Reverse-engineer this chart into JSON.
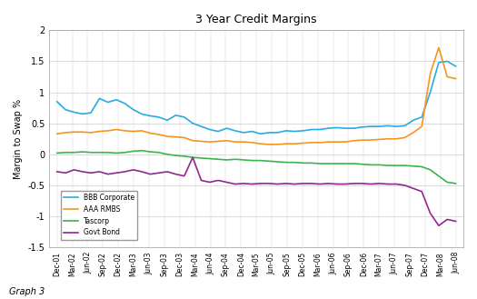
{
  "title": "3 Year Credit Margins",
  "ylabel": "Margin to Swap %",
  "graph_label": "Graph 3",
  "ylim": [
    -1.5,
    2.0
  ],
  "yticks": [
    -1.5,
    -1.0,
    -0.5,
    0.0,
    0.5,
    1.0,
    1.5,
    2.0
  ],
  "ytick_labels": [
    "-1.5",
    "-1",
    "-0.5",
    "0",
    "0.5",
    "1",
    "1.5",
    "2"
  ],
  "x_labels": [
    "Dec-01",
    "Mar-02",
    "Jun-02",
    "Sep-02",
    "Dec-02",
    "Mar-03",
    "Jun-03",
    "Sep-03",
    "Dec-03",
    "Mar-04",
    "Jun-04",
    "Sep-04",
    "Dec-04",
    "Mar-05",
    "Jun-05",
    "Sep-05",
    "Dec-05",
    "Mar-06",
    "Jun-06",
    "Sep-06",
    "Dec-06",
    "Mar-07",
    "Jun-07",
    "Sep-07",
    "Dec-07",
    "Mar-08",
    "Jun-08"
  ],
  "colors": {
    "BBB Corporate": "#29ABE2",
    "AAA RMBS": "#F7941D",
    "Tascorp": "#39B54A",
    "Govt Bond": "#92278F"
  },
  "legend_labels": [
    "BBB Corporate",
    "AAA RMBS",
    "Tascorp",
    "Govt Bond"
  ],
  "bbb_corporate": [
    0.85,
    0.72,
    0.68,
    0.65,
    0.67,
    0.9,
    0.84,
    0.88,
    0.82,
    0.72,
    0.65,
    0.62,
    0.6,
    0.55,
    0.63,
    0.6,
    0.5,
    0.45,
    0.4,
    0.37,
    0.42,
    0.38,
    0.35,
    0.37,
    0.33,
    0.35,
    0.35,
    0.38,
    0.37,
    0.38,
    0.4,
    0.4,
    0.42,
    0.43,
    0.42,
    0.42,
    0.44,
    0.45,
    0.45,
    0.46,
    0.45,
    0.46,
    0.55,
    0.6,
    1.0,
    1.48,
    1.5,
    1.42
  ],
  "aaa_rmbs": [
    0.33,
    0.35,
    0.36,
    0.36,
    0.35,
    0.37,
    0.38,
    0.4,
    0.38,
    0.37,
    0.38,
    0.34,
    0.32,
    0.29,
    0.28,
    0.27,
    0.22,
    0.21,
    0.2,
    0.21,
    0.22,
    0.2,
    0.2,
    0.19,
    0.17,
    0.16,
    0.16,
    0.17,
    0.17,
    0.18,
    0.19,
    0.19,
    0.2,
    0.2,
    0.2,
    0.22,
    0.23,
    0.23,
    0.24,
    0.25,
    0.25,
    0.27,
    0.35,
    0.45,
    1.3,
    1.72,
    1.25,
    1.22
  ],
  "tascorp": [
    0.02,
    0.03,
    0.03,
    0.04,
    0.03,
    0.03,
    0.03,
    0.02,
    0.03,
    0.05,
    0.06,
    0.04,
    0.03,
    0.0,
    -0.02,
    -0.03,
    -0.05,
    -0.06,
    -0.07,
    -0.08,
    -0.09,
    -0.08,
    -0.09,
    -0.1,
    -0.1,
    -0.11,
    -0.12,
    -0.13,
    -0.13,
    -0.14,
    -0.14,
    -0.15,
    -0.15,
    -0.15,
    -0.15,
    -0.15,
    -0.16,
    -0.17,
    -0.17,
    -0.18,
    -0.18,
    -0.18,
    -0.19,
    -0.2,
    -0.25,
    -0.35,
    -0.45,
    -0.47
  ],
  "govt_bond": [
    -0.28,
    -0.3,
    -0.25,
    -0.28,
    -0.3,
    -0.28,
    -0.32,
    -0.3,
    -0.28,
    -0.25,
    -0.28,
    -0.32,
    -0.3,
    -0.28,
    -0.32,
    -0.35,
    -0.05,
    -0.42,
    -0.45,
    -0.42,
    -0.45,
    -0.48,
    -0.47,
    -0.48,
    -0.47,
    -0.47,
    -0.48,
    -0.47,
    -0.48,
    -0.47,
    -0.47,
    -0.48,
    -0.47,
    -0.48,
    -0.48,
    -0.47,
    -0.47,
    -0.48,
    -0.47,
    -0.48,
    -0.48,
    -0.5,
    -0.55,
    -0.6,
    -0.95,
    -1.15,
    -1.05,
    -1.08
  ],
  "background_color": "#FFFFFF",
  "plot_bg_color": "#FFFFFF",
  "grid_color": "#CCCCCC",
  "line_width": 1.2
}
